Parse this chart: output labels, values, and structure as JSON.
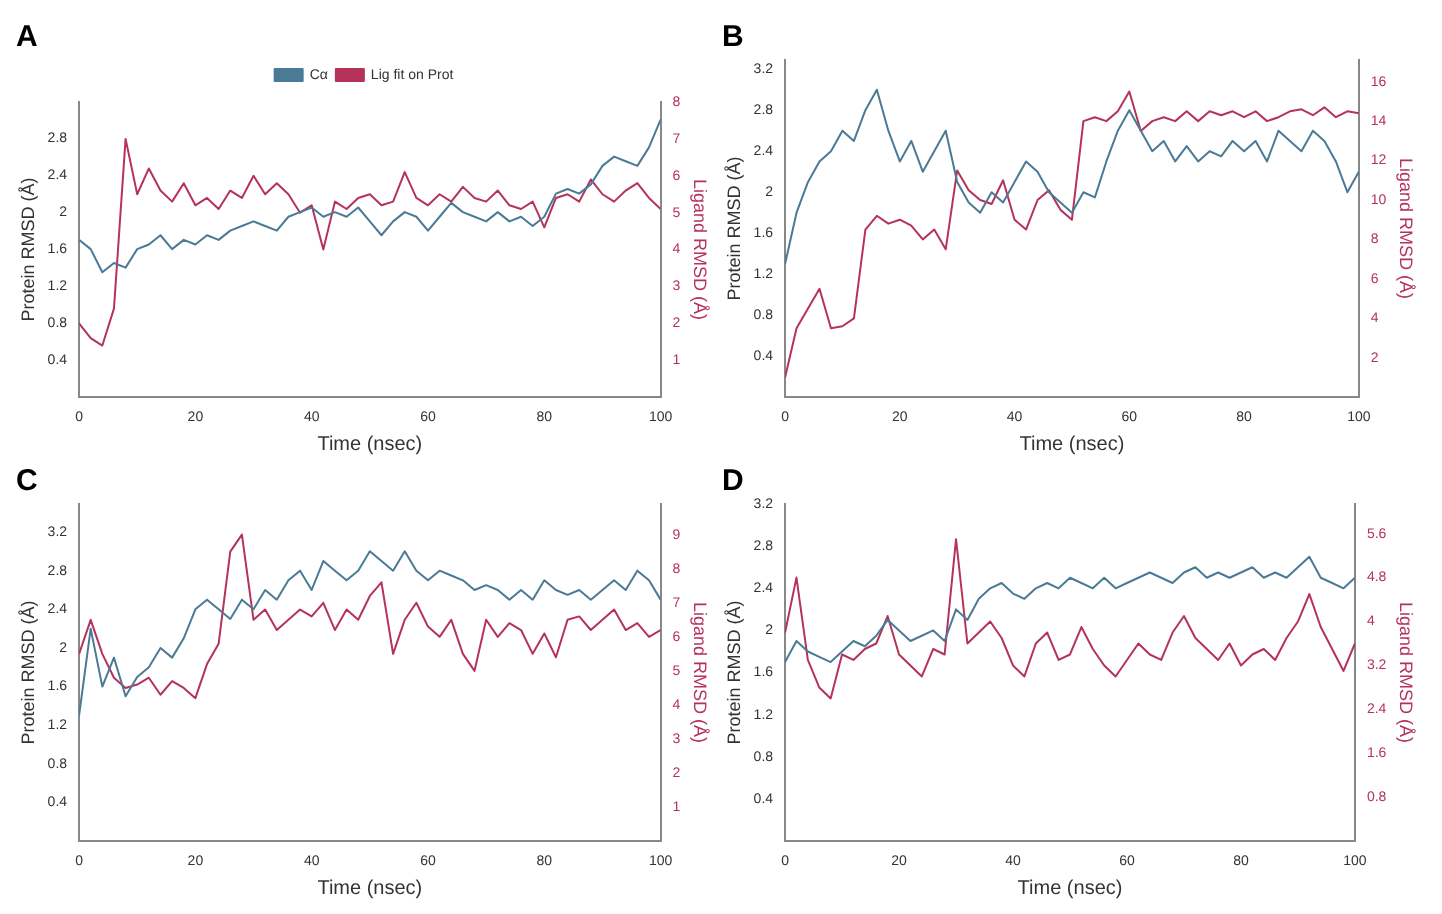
{
  "chart_data": [
    {
      "type": "line",
      "title": "A",
      "xlabel": "Time (nsec)",
      "ylabel": "Protein RMSD (Å)",
      "y2label": "Ligand RMSD (Å)",
      "legend": "top",
      "grid": false,
      "marker": "none",
      "line_style": "solid",
      "x": [
        0,
        2,
        4,
        6,
        8,
        10,
        12,
        14,
        16,
        18,
        20,
        22,
        24,
        26,
        28,
        30,
        32,
        34,
        36,
        38,
        40,
        42,
        44,
        46,
        48,
        50,
        52,
        54,
        56,
        58,
        60,
        62,
        64,
        66,
        68,
        70,
        72,
        74,
        76,
        78,
        80,
        82,
        84,
        86,
        88,
        90,
        92,
        94,
        96,
        98,
        100
      ],
      "xlim": [
        0,
        100
      ],
      "xticks": [
        0,
        20,
        40,
        60,
        80,
        100
      ],
      "ylim": [
        0,
        3.19
      ],
      "yticks": [
        0.4,
        0.8,
        1.2,
        1.6,
        2.0,
        2.4,
        2.8
      ],
      "y2lim": [
        0,
        8
      ],
      "y2ticks": [
        1,
        2,
        3,
        4,
        5,
        6,
        7,
        8
      ],
      "series": [
        {
          "name": "Cα",
          "color": "#4a7a96",
          "values": [
            1.7,
            1.6,
            1.35,
            1.45,
            1.4,
            1.6,
            1.65,
            1.75,
            1.6,
            1.7,
            1.65,
            1.75,
            1.7,
            1.8,
            1.85,
            1.9,
            1.85,
            1.8,
            1.95,
            2.0,
            2.05,
            1.95,
            2.0,
            1.95,
            2.05,
            1.9,
            1.75,
            1.9,
            2.0,
            1.95,
            1.8,
            1.95,
            2.1,
            2.0,
            1.95,
            1.9,
            2.0,
            1.9,
            1.95,
            1.85,
            1.95,
            2.2,
            2.25,
            2.2,
            2.3,
            2.5,
            2.6,
            2.55,
            2.5,
            2.7,
            3.0
          ]
        },
        {
          "name": "Lig fit on Prot",
          "color": "#b5325a",
          "axis": "y2",
          "values": [
            2.0,
            1.6,
            1.4,
            2.4,
            7.0,
            5.5,
            6.2,
            5.6,
            5.3,
            5.8,
            5.2,
            5.4,
            5.1,
            5.6,
            5.4,
            6.0,
            5.5,
            5.8,
            5.5,
            5.0,
            5.2,
            4.0,
            5.3,
            5.1,
            5.4,
            5.5,
            5.2,
            5.3,
            6.1,
            5.4,
            5.2,
            5.5,
            5.3,
            5.7,
            5.4,
            5.3,
            5.6,
            5.2,
            5.1,
            5.3,
            4.6,
            5.4,
            5.5,
            5.3,
            5.9,
            5.5,
            5.3,
            5.6,
            5.8,
            5.4,
            5.1
          ]
        }
      ]
    },
    {
      "type": "line",
      "title": "B",
      "xlabel": "Time (nsec)",
      "ylabel": "Protein RMSD (Å)",
      "y2label": "Ligand RMSD (Å)",
      "grid": false,
      "marker": "none",
      "line_style": "solid",
      "x": [
        0,
        2,
        4,
        6,
        8,
        10,
        12,
        14,
        16,
        18,
        20,
        22,
        24,
        26,
        28,
        30,
        32,
        34,
        36,
        38,
        40,
        42,
        44,
        46,
        48,
        50,
        52,
        54,
        56,
        58,
        60,
        62,
        64,
        66,
        68,
        70,
        72,
        74,
        76,
        78,
        80,
        82,
        84,
        86,
        88,
        90,
        92,
        94,
        96,
        98,
        100
      ],
      "xlim": [
        0,
        100
      ],
      "xticks": [
        0,
        20,
        40,
        60,
        80,
        100
      ],
      "ylim": [
        0,
        3.29
      ],
      "yticks": [
        0.4,
        0.8,
        1.2,
        1.6,
        2.0,
        2.4,
        2.8,
        3.2
      ],
      "y2lim": [
        0,
        17.1
      ],
      "y2ticks": [
        2,
        4,
        6,
        8,
        10,
        12,
        14,
        16
      ],
      "series": [
        {
          "color": "#4a7a96",
          "values": [
            1.3,
            1.8,
            2.1,
            2.3,
            2.4,
            2.6,
            2.5,
            2.8,
            3.0,
            2.6,
            2.3,
            2.5,
            2.2,
            2.4,
            2.6,
            2.1,
            1.9,
            1.8,
            2.0,
            1.9,
            2.1,
            2.3,
            2.2,
            2.0,
            1.9,
            1.8,
            2.0,
            1.95,
            2.3,
            2.6,
            2.8,
            2.6,
            2.4,
            2.5,
            2.3,
            2.45,
            2.3,
            2.4,
            2.35,
            2.5,
            2.4,
            2.5,
            2.3,
            2.6,
            2.5,
            2.4,
            2.6,
            2.5,
            2.3,
            2.0,
            2.2
          ]
        },
        {
          "color": "#b5325a",
          "axis": "y2",
          "values": [
            1.0,
            3.5,
            4.5,
            5.5,
            3.5,
            3.6,
            4.0,
            8.5,
            9.2,
            8.8,
            9.0,
            8.7,
            8.0,
            8.5,
            7.5,
            11.5,
            10.5,
            10.0,
            9.8,
            11.0,
            9.0,
            8.5,
            10.0,
            10.5,
            9.5,
            9.0,
            14.0,
            14.2,
            14.0,
            14.5,
            15.5,
            13.5,
            14.0,
            14.2,
            14.0,
            14.5,
            14.0,
            14.5,
            14.3,
            14.5,
            14.2,
            14.5,
            14.0,
            14.2,
            14.5,
            14.6,
            14.3,
            14.7,
            14.2,
            14.5,
            14.4
          ]
        }
      ]
    },
    {
      "type": "line",
      "title": "C",
      "xlabel": "Time (nsec)",
      "ylabel": "Protein RMSD (Å)",
      "y2label": "Ligand RMSD (Å)",
      "grid": false,
      "marker": "none",
      "line_style": "solid",
      "x": [
        0,
        2,
        4,
        6,
        8,
        10,
        12,
        14,
        16,
        18,
        20,
        22,
        24,
        26,
        28,
        30,
        32,
        34,
        36,
        38,
        40,
        42,
        44,
        46,
        48,
        50,
        52,
        54,
        56,
        58,
        60,
        62,
        64,
        66,
        68,
        70,
        72,
        74,
        76,
        78,
        80,
        82,
        84,
        86,
        88,
        90,
        92,
        94,
        96,
        98,
        100
      ],
      "xlim": [
        0,
        100
      ],
      "xticks": [
        0,
        20,
        40,
        60,
        80,
        100
      ],
      "ylim": [
        0,
        3.49
      ],
      "yticks": [
        0.4,
        0.8,
        1.2,
        1.6,
        2.0,
        2.4,
        2.8,
        3.2
      ],
      "y2lim": [
        0,
        9.9
      ],
      "y2ticks": [
        1,
        2,
        3,
        4,
        5,
        6,
        7,
        8,
        9
      ],
      "series": [
        {
          "color": "#4a7a96",
          "values": [
            1.3,
            2.2,
            1.6,
            1.9,
            1.5,
            1.7,
            1.8,
            2.0,
            1.9,
            2.1,
            2.4,
            2.5,
            2.4,
            2.3,
            2.5,
            2.4,
            2.6,
            2.5,
            2.7,
            2.8,
            2.6,
            2.9,
            2.8,
            2.7,
            2.8,
            3.0,
            2.9,
            2.8,
            3.0,
            2.8,
            2.7,
            2.8,
            2.75,
            2.7,
            2.6,
            2.65,
            2.6,
            2.5,
            2.6,
            2.5,
            2.7,
            2.6,
            2.55,
            2.6,
            2.5,
            2.6,
            2.7,
            2.6,
            2.8,
            2.7,
            2.5
          ]
        },
        {
          "color": "#b5325a",
          "axis": "y2",
          "values": [
            5.5,
            6.5,
            5.5,
            4.8,
            4.5,
            4.6,
            4.8,
            4.3,
            4.7,
            4.5,
            4.2,
            5.2,
            5.8,
            8.5,
            9.0,
            6.5,
            6.8,
            6.2,
            6.5,
            6.8,
            6.6,
            7.0,
            6.2,
            6.8,
            6.5,
            7.2,
            7.6,
            5.5,
            6.5,
            7.0,
            6.3,
            6.0,
            6.5,
            5.5,
            5.0,
            6.5,
            6.0,
            6.4,
            6.2,
            5.5,
            6.1,
            5.4,
            6.5,
            6.6,
            6.2,
            6.5,
            6.8,
            6.2,
            6.4,
            6.0,
            6.2
          ]
        }
      ]
    },
    {
      "type": "line",
      "title": "D",
      "xlabel": "Time (nsec)",
      "ylabel": "Protein RMSD (Å)",
      "y2label": "Ligand RMSD (Å)",
      "grid": false,
      "marker": "none",
      "line_style": "solid",
      "x": [
        0,
        2,
        4,
        6,
        8,
        10,
        12,
        14,
        16,
        18,
        20,
        22,
        24,
        26,
        28,
        30,
        32,
        34,
        36,
        38,
        40,
        42,
        44,
        46,
        48,
        50,
        52,
        54,
        56,
        58,
        60,
        62,
        64,
        66,
        68,
        70,
        72,
        74,
        76,
        78,
        80,
        82,
        84,
        86,
        88,
        90,
        92,
        94,
        96,
        98,
        100
      ],
      "xlim": [
        0,
        100
      ],
      "xticks": [
        0,
        20,
        40,
        60,
        80,
        100
      ],
      "ylim": [
        0,
        3.2
      ],
      "yticks": [
        0.4,
        0.8,
        1.2,
        1.6,
        2.0,
        2.4,
        2.8,
        3.2
      ],
      "y2lim": [
        0,
        6.14
      ],
      "y2ticks": [
        0.8,
        1.6,
        2.4,
        3.2,
        4.0,
        4.8,
        5.6
      ],
      "series": [
        {
          "color": "#4a7a96",
          "values": [
            1.7,
            1.9,
            1.8,
            1.75,
            1.7,
            1.8,
            1.9,
            1.85,
            1.95,
            2.1,
            2.0,
            1.9,
            1.95,
            2.0,
            1.9,
            2.2,
            2.1,
            2.3,
            2.4,
            2.45,
            2.35,
            2.3,
            2.4,
            2.45,
            2.4,
            2.5,
            2.45,
            2.4,
            2.5,
            2.4,
            2.45,
            2.5,
            2.55,
            2.5,
            2.45,
            2.55,
            2.6,
            2.5,
            2.55,
            2.5,
            2.55,
            2.6,
            2.5,
            2.55,
            2.5,
            2.6,
            2.7,
            2.5,
            2.45,
            2.4,
            2.5
          ]
        },
        {
          "color": "#b5325a",
          "axis": "y2",
          "values": [
            3.8,
            4.8,
            3.3,
            2.8,
            2.6,
            3.4,
            3.3,
            3.5,
            3.6,
            4.1,
            3.4,
            3.2,
            3.0,
            3.5,
            3.4,
            5.5,
            3.6,
            3.8,
            4.0,
            3.7,
            3.2,
            3.0,
            3.6,
            3.8,
            3.3,
            3.4,
            3.9,
            3.5,
            3.2,
            3.0,
            3.3,
            3.6,
            3.4,
            3.3,
            3.8,
            4.1,
            3.7,
            3.5,
            3.3,
            3.6,
            3.2,
            3.4,
            3.5,
            3.3,
            3.7,
            4.0,
            4.5,
            3.9,
            3.5,
            3.1,
            3.6
          ]
        }
      ]
    }
  ]
}
